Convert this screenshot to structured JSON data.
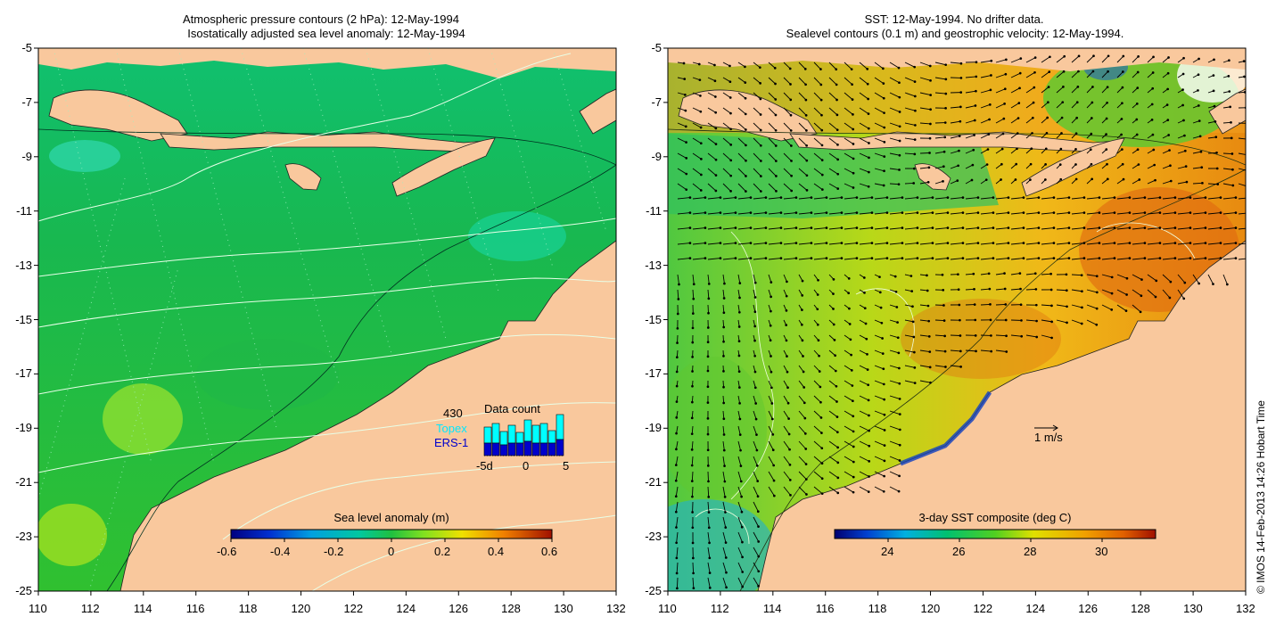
{
  "left_panel": {
    "title_line1": "Atmospheric pressure contours (2 hPa): 12-May-1994",
    "title_line2": "Isostatically adjusted sea level anomaly: 12-May-1994",
    "colorbar": {
      "title": "Sea level anomaly (m)",
      "ticks": [
        "-0.6",
        "-0.4",
        "-0.2",
        "0",
        "0.2",
        "0.4",
        "0.6"
      ],
      "range": [
        -0.6,
        0.6
      ]
    },
    "inset": {
      "title": "Data count",
      "max_count": "430",
      "topex_label": "Topex",
      "ers_label": "ERS-1",
      "x_ticks": [
        "-5d",
        "0",
        "5"
      ],
      "topex_color": "#00ffff",
      "ers_color": "#0000cc"
    }
  },
  "right_panel": {
    "title_line1": "SST: 12-May-1994. No drifter data.",
    "title_line2": "Sealevel contours (0.1 m) and geostrophic velocity: 12-May-1994.",
    "velocity_scale_label": "1 m/s",
    "colorbar": {
      "title": "3-day SST composite (deg C)",
      "ticks": [
        "24",
        "26",
        "28",
        "30"
      ],
      "range": [
        22.5,
        31.5
      ]
    }
  },
  "axes": {
    "x_ticks": [
      "110",
      "112",
      "114",
      "116",
      "118",
      "120",
      "122",
      "124",
      "126",
      "128",
      "130",
      "132"
    ],
    "y_ticks": [
      "-5",
      "-7",
      "-9",
      "-11",
      "-13",
      "-15",
      "-17",
      "-19",
      "-21",
      "-23",
      "-25"
    ],
    "lon_range": [
      110,
      132
    ],
    "lat_range": [
      -25,
      -5
    ]
  },
  "credit": "© IMOS 14-Feb-2013 14:26 Hobart Time",
  "colors": {
    "land": "#f9c89d",
    "ocean_left": "#22bb44",
    "ocean_right": "#f0b020"
  }
}
